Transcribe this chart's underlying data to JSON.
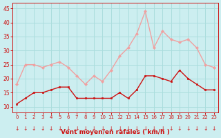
{
  "hours": [
    0,
    1,
    2,
    3,
    4,
    5,
    6,
    7,
    8,
    9,
    10,
    11,
    12,
    13,
    14,
    15,
    16,
    17,
    18,
    19,
    20,
    21,
    22,
    23
  ],
  "wind_avg": [
    11,
    13,
    15,
    15,
    16,
    17,
    17,
    13,
    13,
    13,
    13,
    13,
    15,
    13,
    16,
    21,
    21,
    20,
    19,
    23,
    20,
    18,
    16,
    16
  ],
  "wind_gust": [
    18,
    25,
    25,
    24,
    25,
    26,
    24,
    21,
    18,
    21,
    19,
    23,
    28,
    31,
    36,
    44,
    31,
    37,
    34,
    33,
    34,
    31,
    25,
    24
  ],
  "bg_color": "#cceef0",
  "grid_color": "#aadddd",
  "avg_color": "#cc1111",
  "gust_color": "#f0a0a0",
  "xlabel": "Vent moyen/en rafales ( km/h )",
  "ylim": [
    8,
    47
  ],
  "yticks": [
    10,
    15,
    20,
    25,
    30,
    35,
    40,
    45
  ],
  "xlim": [
    -0.5,
    23.5
  ]
}
